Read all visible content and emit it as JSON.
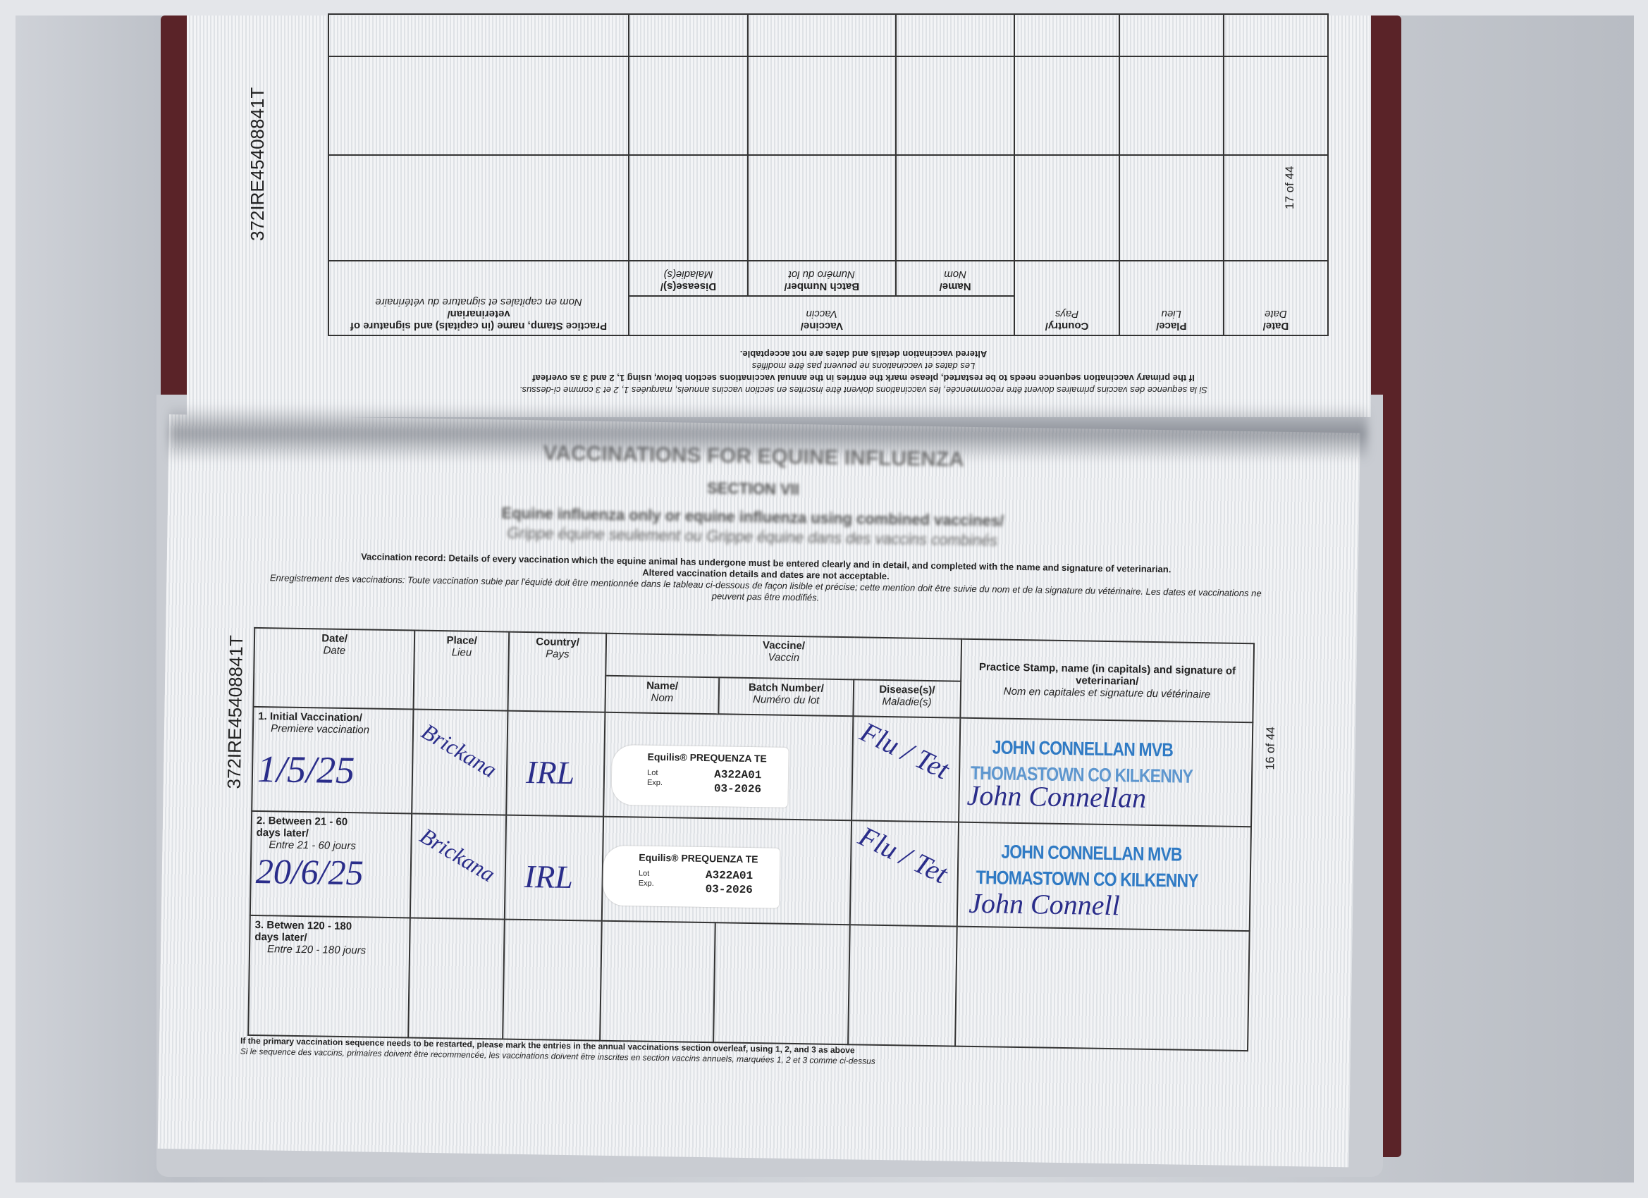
{
  "passport_id": "372IRE45408841T",
  "top_page": {
    "page_number": "17 of 44",
    "header": {
      "date": "Date/",
      "date_fr": "Date",
      "place": "Place/",
      "place_fr": "Lieu",
      "country": "Country/",
      "country_fr": "Pays",
      "vaccine": "Vaccine/",
      "vaccine_fr": "Vaccin",
      "name": "Name/",
      "name_fr": "Nom",
      "batch": "Batch Number/",
      "batch_fr": "Numéro du lot",
      "disease": "Disease(s)/",
      "disease_fr": "Maladie(s)",
      "stamp": "Practice Stamp, name (in capitals) and signature of veterinarian/",
      "stamp_fr": "Nom en capitales et signature du vétérinaire"
    },
    "note_en": "If the primary vaccination sequence needs to be restarted, please mark the entries in the annual vaccinations section below, using 1, 2 and 3 as overleaf",
    "note_fr": "Si la sequence des vaccins primaires doivent être recommencée, les vaccinations doivent être inscrites en section vaccins annuels, marquées 1, 2 et 3 comme ci-dessus.",
    "altered_en": "Altered vaccination details and dates are not acceptable.",
    "altered_fr": "Les dates et vaccinations ne peuvent pas être modifiés"
  },
  "bottom_page": {
    "page_number": "16 of 44",
    "banner": "VACCINATIONS FOR EQUINE INFLUENZA",
    "section": "SECTION VII",
    "subtitle_en": "Equine influenza only or equine influenza using combined vaccines/",
    "subtitle_fr": "Grippe équine seulement ou Grippe équine dans des vaccins combinés",
    "record_en": "Vaccination record: Details of every vaccination which the equine animal has undergone must be entered clearly and in detail, and completed with the name and signature of veterinarian.",
    "record_en2": "Altered vaccination details and dates are not acceptable.",
    "record_fr": "Enregistrement des vaccinations: Toute vaccination subie par l'équidé doit être mentionnée dans le tableau ci-dessous de façon lisible et précise; cette mention doit être suivie du nom et de la signature du vétérinaire. Les dates et vaccinations ne peuvent pas être modifiés.",
    "header": {
      "date": "Date/",
      "date_fr": "Date",
      "place": "Place/",
      "place_fr": "Lieu",
      "country": "Country/",
      "country_fr": "Pays",
      "vaccine": "Vaccine/",
      "vaccine_fr": "Vaccin",
      "name": "Name/",
      "name_fr": "Nom",
      "batch": "Batch Number/",
      "batch_fr": "Numéro du lot",
      "disease": "Disease(s)/",
      "disease_fr": "Maladie(s)",
      "stamp": "Practice Stamp, name (in capitals) and signature of veterinarian/",
      "stamp_fr": "Nom en capitales et signature du vétérinaire"
    },
    "rows": [
      {
        "label": "1. Initial Vaccination/",
        "label_fr": "Premiere vaccination",
        "date": "1/5/25",
        "place": "Brickana",
        "country": "IRL",
        "sticker_name": "Equilis® PREQUENZA TE",
        "sticker_lot_label": "Lot",
        "sticker_exp_label": "Exp.",
        "batch": "A322A01",
        "expiry": "03-2026",
        "disease": "Flu / Tet",
        "stamp_line1": "JOHN CONNELLAN MVB",
        "stamp_line2": "THOMASTOWN CO KILKENNY",
        "signature": "John Connellan"
      },
      {
        "label": "2. Between 21 - 60 days later/",
        "label_fr": "Entre 21 - 60 jours",
        "date": "20/6/25",
        "place": "Brickana",
        "country": "IRL",
        "sticker_name": "Equilis® PREQUENZA TE",
        "sticker_lot_label": "Lot",
        "sticker_exp_label": "Exp.",
        "batch": "A322A01",
        "expiry": "03-2026",
        "disease": "Flu / Tet",
        "stamp_line1": "JOHN CONNELLAN MVB",
        "stamp_line2": "THOMASTOWN CO KILKENNY",
        "signature": "John Connell"
      },
      {
        "label": "3. Betwen 120 - 180 days later/",
        "label_fr": "Entre 120 - 180 jours"
      }
    ],
    "footer_en": "If the primary vaccination sequence needs to be restarted, please mark the entries in the annual vaccinations section overleaf, using 1, 2, and 3 as above",
    "footer_fr": "Si le sequence des vaccins, primaires doivent être recommencée, les vaccinations doivent être inscrites en section vaccins annuels, marquées 1, 2 et 3 comme ci-dessus"
  },
  "colors": {
    "ink": "#2a2d8a",
    "stamp": "#2f7ac4",
    "cover": "#5a2328"
  }
}
